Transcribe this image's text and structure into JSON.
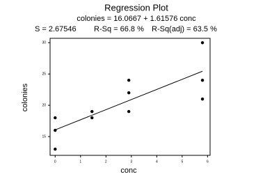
{
  "chart_data": {
    "type": "scatter",
    "title": "Regression Plot",
    "subtitle": "colonies = 16.0667 + 1.61576 conc",
    "stats": [
      "S = 2.67546",
      "R-Sq = 66.8 %",
      "R-Sq(adj) = 63.5 %"
    ],
    "x_label": "conc",
    "y_label": "colonies",
    "points": {
      "x": [
        0,
        0,
        0,
        1.45,
        1.45,
        2.9,
        2.9,
        2.9,
        5.8,
        5.8,
        5.8
      ],
      "y": [
        18,
        16,
        13,
        19,
        18,
        24,
        22,
        19,
        30,
        24,
        21
      ],
      "color": "#000000"
    },
    "fit": {
      "x": [
        0,
        5.8
      ],
      "y": [
        16.0667,
        25.44
      ],
      "color": "#000000"
    },
    "xlim": [
      -0.2,
      6.1
    ],
    "ylim": [
      12,
      30.7
    ],
    "xticks": [
      0,
      1,
      2,
      3,
      4,
      5,
      6
    ],
    "yticks": [
      15,
      20,
      25,
      30
    ]
  }
}
